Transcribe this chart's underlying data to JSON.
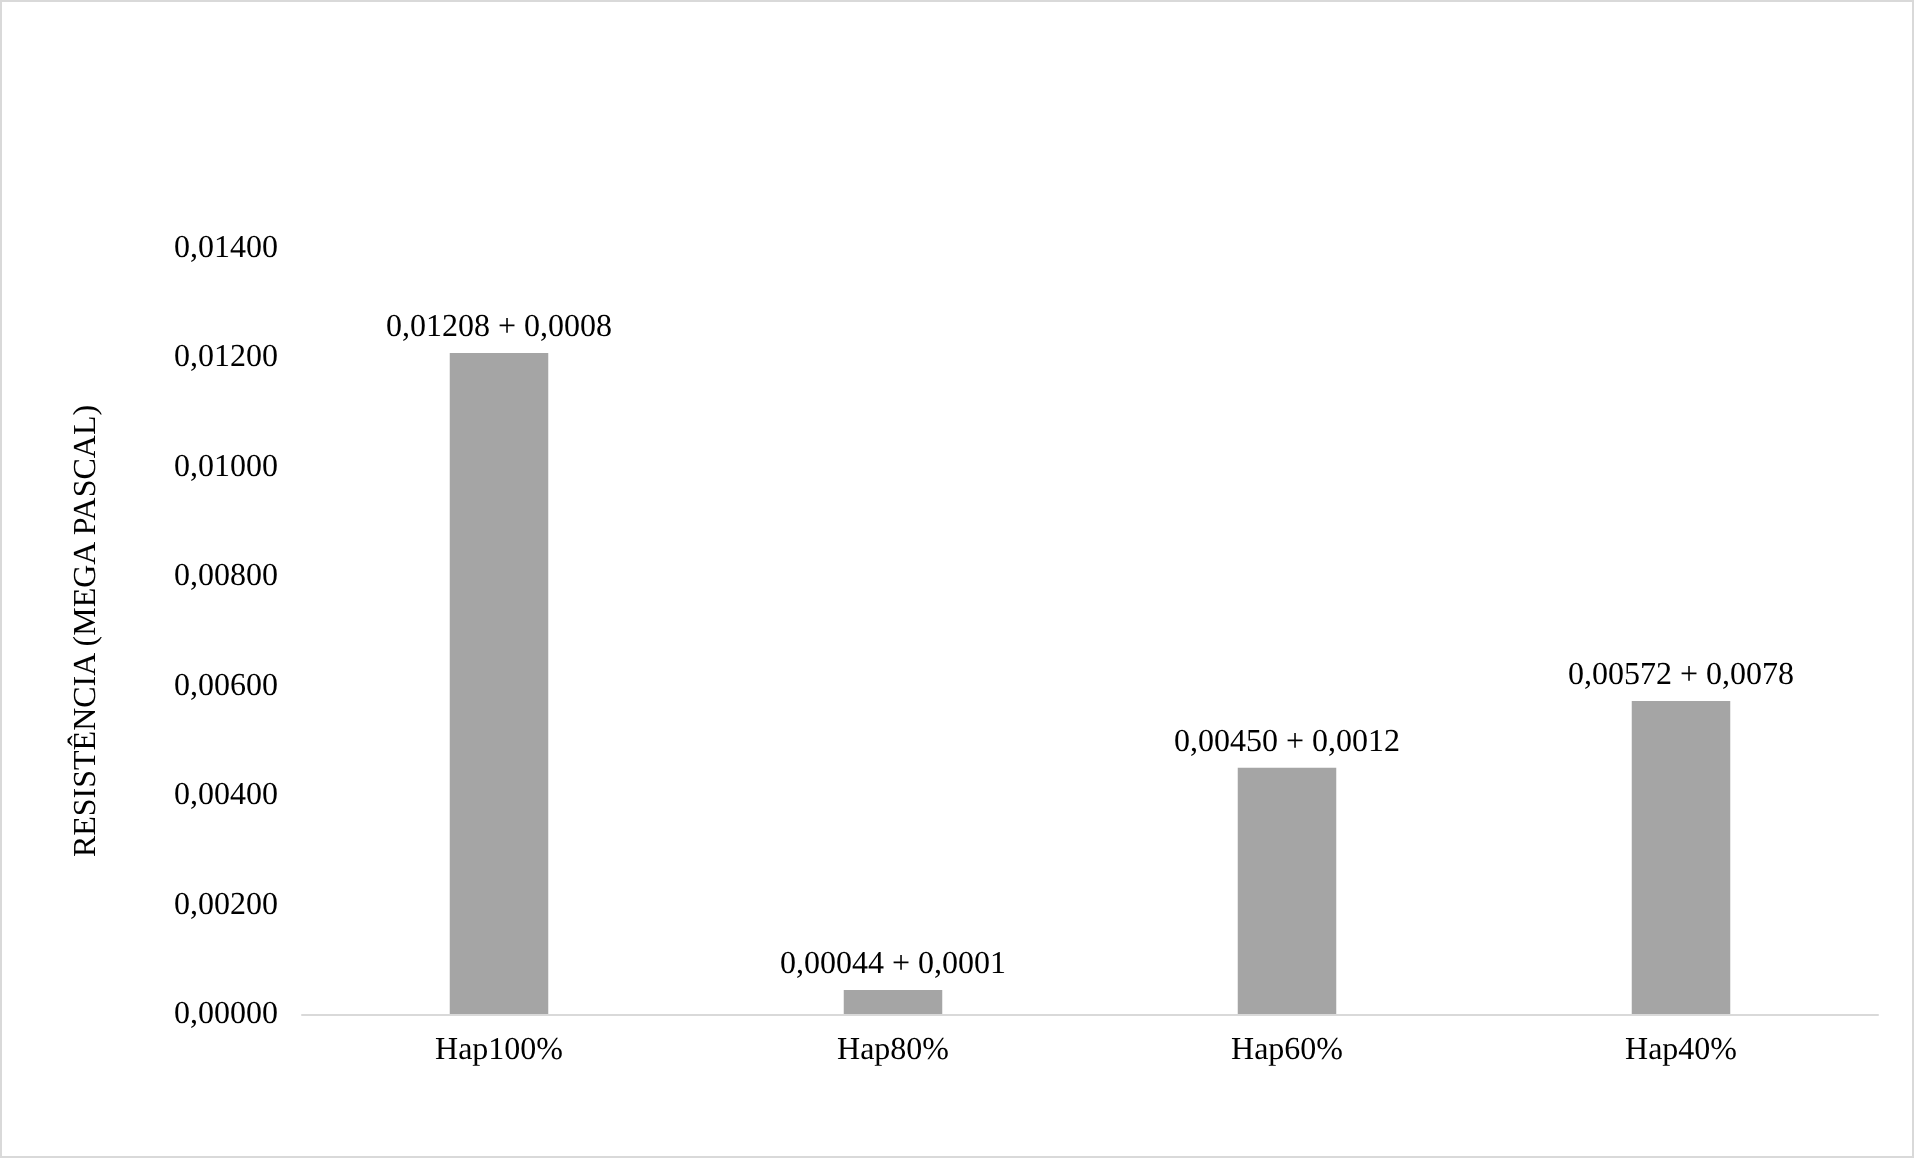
{
  "chart_data": {
    "type": "bar",
    "ylabel": "RESISTÊNCIA (MEGA PASCAL)",
    "categories": [
      "Hap100%",
      "Hap80%",
      "Hap60%",
      "Hap40%"
    ],
    "values": [
      0.01208,
      0.00044,
      0.0045,
      0.00572
    ],
    "value_labels": [
      "0,01208 + 0,0008",
      "0,00044 + 0,0001",
      "0,00450 + 0,0012",
      "0,00572 + 0,0078"
    ],
    "color": "#a5a5a5",
    "ylim": [
      0,
      0.014
    ],
    "yticks": [
      {
        "value": 0,
        "label": "0,00000"
      },
      {
        "value": 0.002,
        "label": "0,00200"
      },
      {
        "value": 0.004,
        "label": "0,00400"
      },
      {
        "value": 0.006,
        "label": "0,00600"
      },
      {
        "value": 0.008,
        "label": "0,00800"
      },
      {
        "value": 0.01,
        "label": "0,01000"
      },
      {
        "value": 0.012,
        "label": "0,01200"
      },
      {
        "value": 0.014,
        "label": "0,01400"
      }
    ],
    "grid": false
  }
}
